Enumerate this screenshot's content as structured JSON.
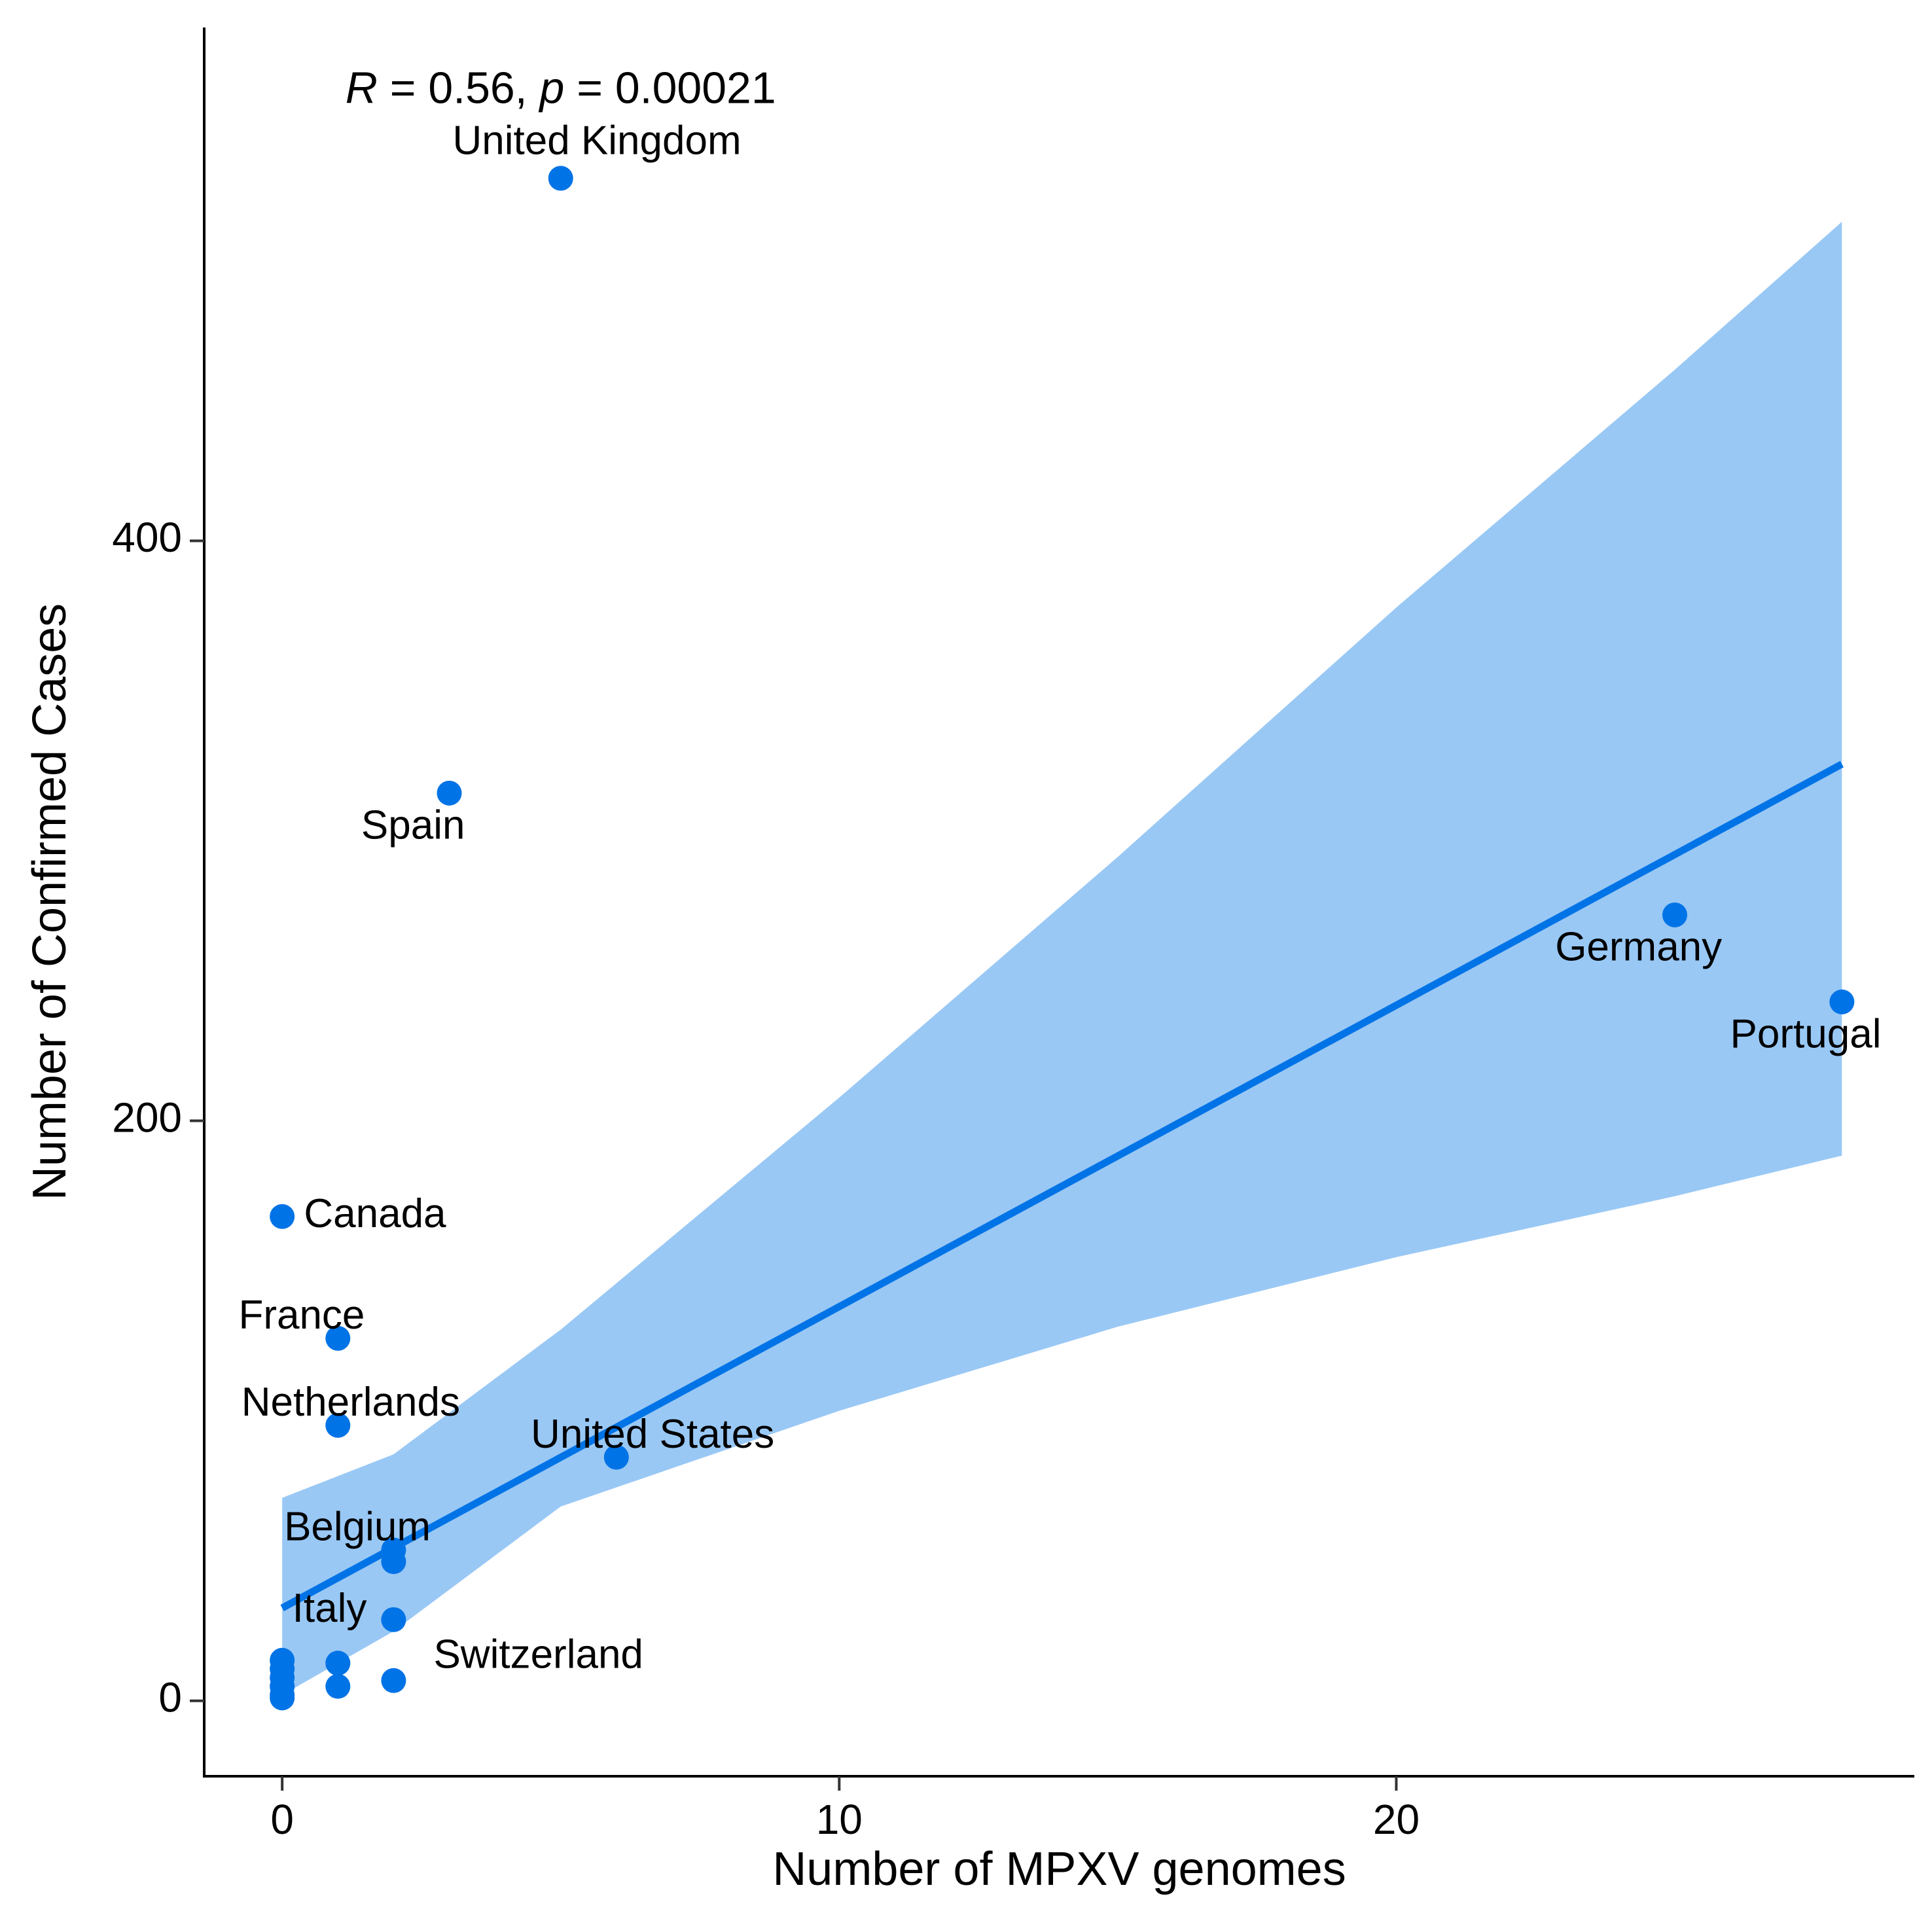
{
  "chart_data": {
    "type": "scatter",
    "title": "",
    "xlabel": "Number of MPXV genomes",
    "ylabel": "Number of Confirmed Cases",
    "xlim": [
      -1.4,
      29.3
    ],
    "ylim": [
      -26,
      577
    ],
    "x_ticks": [
      0,
      10,
      20
    ],
    "y_ticks": [
      0,
      200,
      400
    ],
    "grid": false,
    "legend": "none",
    "colors": {
      "point": "#0073e6",
      "fit_line": "#0073e6",
      "confidence_band": "#99c8f5"
    },
    "annotation": {
      "r_symbol": "R",
      "r_text": " = 0.56, ",
      "p_symbol": "p",
      "p_text": " = 0.00021",
      "x": 5,
      "y": 555
    },
    "regression": {
      "x_start": 0,
      "y_start": 32,
      "x_end": 28,
      "y_end": 323,
      "band_upper": [
        [
          0,
          70
        ],
        [
          2,
          85
        ],
        [
          5,
          128
        ],
        [
          10,
          208
        ],
        [
          15,
          291
        ],
        [
          20,
          377
        ],
        [
          25,
          459
        ],
        [
          28,
          510
        ]
      ],
      "band_lower": [
        [
          0,
          2
        ],
        [
          2,
          24
        ],
        [
          5,
          67
        ],
        [
          10,
          100
        ],
        [
          15,
          129
        ],
        [
          20,
          153
        ],
        [
          25,
          174
        ],
        [
          28,
          188
        ]
      ]
    },
    "points": [
      {
        "x": 5,
        "y": 525,
        "label": "United Kingdom",
        "label_dx": 0.65,
        "label_dy": 12,
        "anchor": "middle"
      },
      {
        "x": 3,
        "y": 313,
        "label": "Spain",
        "label_dx": -0.65,
        "label_dy": -12,
        "anchor": "middle"
      },
      {
        "x": 25,
        "y": 271,
        "label": "Germany",
        "label_dx": -0.65,
        "label_dy": -12,
        "anchor": "middle"
      },
      {
        "x": 28,
        "y": 241,
        "label": "Portugal",
        "label_dx": -0.65,
        "label_dy": -12,
        "anchor": "middle"
      },
      {
        "x": 0,
        "y": 167,
        "label": "Canada",
        "label_dx": 0.39,
        "label_dy": 0,
        "anchor": "start"
      },
      {
        "x": 1,
        "y": 125,
        "label": "France",
        "label_dx": -0.65,
        "label_dy": 7,
        "anchor": "middle"
      },
      {
        "x": 1,
        "y": 95,
        "label": "Netherlands",
        "label_dx": 0.23,
        "label_dy": 7,
        "anchor": "middle"
      },
      {
        "x": 6,
        "y": 84,
        "label": "United States",
        "label_dx": 0.65,
        "label_dy": 7,
        "anchor": "middle"
      },
      {
        "x": 2,
        "y": 52,
        "label": "Belgium",
        "label_dx": -0.65,
        "label_dy": 7,
        "anchor": "middle"
      },
      {
        "x": 2,
        "y": 48,
        "label": "",
        "label_dx": 0,
        "label_dy": 0,
        "anchor": "middle"
      },
      {
        "x": 2,
        "y": 28,
        "label": "Italy",
        "label_dx": -1.15,
        "label_dy": 3,
        "anchor": "middle"
      },
      {
        "x": 2,
        "y": 7,
        "label": "Switzerland",
        "label_dx": 2.6,
        "label_dy": 8,
        "anchor": "middle"
      },
      {
        "x": 1,
        "y": 13,
        "label": "",
        "label_dx": 0,
        "label_dy": 0,
        "anchor": "middle"
      },
      {
        "x": 1,
        "y": 5,
        "label": "",
        "label_dx": 0,
        "label_dy": 0,
        "anchor": "middle"
      },
      {
        "x": 0,
        "y": 14,
        "label": "",
        "label_dx": 0,
        "label_dy": 0,
        "anchor": "middle"
      },
      {
        "x": 0,
        "y": 11,
        "label": "",
        "label_dx": 0,
        "label_dy": 0,
        "anchor": "middle"
      },
      {
        "x": 0,
        "y": 8,
        "label": "",
        "label_dx": 0,
        "label_dy": 0,
        "anchor": "middle"
      },
      {
        "x": 0,
        "y": 5,
        "label": "",
        "label_dx": 0,
        "label_dy": 0,
        "anchor": "middle"
      },
      {
        "x": 0,
        "y": 2,
        "label": "",
        "label_dx": 0,
        "label_dy": 0,
        "anchor": "middle"
      },
      {
        "x": 0,
        "y": 1,
        "label": "",
        "label_dx": 0,
        "label_dy": 0,
        "anchor": "middle"
      }
    ]
  }
}
